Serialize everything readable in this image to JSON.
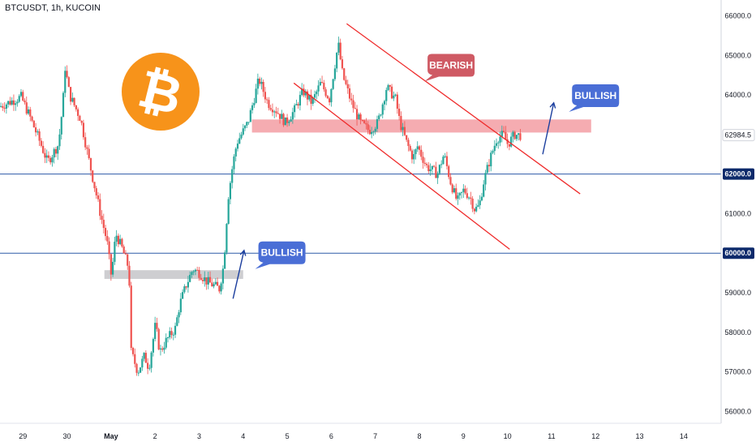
{
  "header": {
    "symbol_line": "BTCUSDT, 1h, KUCOIN"
  },
  "colors": {
    "up": "#26a69a",
    "down": "#ef5350",
    "channel": "#ef2b2b",
    "resistance_zone": "#f4a3a8",
    "support_zone": "#c9c9cc",
    "horizontal_line": "#2f5aa8",
    "bullish_callout": "#4a6ed6",
    "bearish_callout": "#cf5a64",
    "arrow": "#1c3f9e",
    "bitcoin_orange": "#f7931a",
    "current_price_label": "#ffffff"
  },
  "chart_data": {
    "type": "candlestick",
    "title": "",
    "xlabel": "",
    "ylabel": "",
    "ylim": [
      55700,
      66400
    ],
    "y_ticks": [
      "56000.0",
      "57000.0",
      "58000.0",
      "59000.0",
      "60000.0",
      "61000.0",
      "62000.0",
      "63000.0",
      "64000.0",
      "65000.0",
      "66000.0"
    ],
    "x_ticks": [
      {
        "label": "29",
        "day": 0
      },
      {
        "label": "30",
        "day": 1
      },
      {
        "label": "May",
        "day": 2
      },
      {
        "label": "2",
        "day": 3
      },
      {
        "label": "3",
        "day": 4
      },
      {
        "label": "4",
        "day": 5
      },
      {
        "label": "5",
        "day": 6
      },
      {
        "label": "6",
        "day": 7
      },
      {
        "label": "7",
        "day": 8
      },
      {
        "label": "8",
        "day": 9
      },
      {
        "label": "9",
        "day": 10
      },
      {
        "label": "10",
        "day": 11
      },
      {
        "label": "11",
        "day": 12
      },
      {
        "label": "12",
        "day": 13
      },
      {
        "label": "13",
        "day": 14
      },
      {
        "label": "14",
        "day": 15
      }
    ],
    "x_range_days": [
      -0.52,
      15.85
    ],
    "price_path": [
      [
        -0.5,
        63700
      ],
      [
        0.0,
        63950
      ],
      [
        0.2,
        63450
      ],
      [
        0.45,
        62750
      ],
      [
        0.6,
        62300
      ],
      [
        0.85,
        62750
      ],
      [
        0.95,
        63800
      ],
      [
        1.0,
        64700
      ],
      [
        1.1,
        64000
      ],
      [
        1.35,
        63400
      ],
      [
        1.55,
        62300
      ],
      [
        1.8,
        61000
      ],
      [
        1.95,
        60300
      ],
      [
        2.05,
        59400
      ],
      [
        2.15,
        60500
      ],
      [
        2.3,
        60100
      ],
      [
        2.45,
        59600
      ],
      [
        2.5,
        57500
      ],
      [
        2.65,
        57000
      ],
      [
        2.8,
        57400
      ],
      [
        2.9,
        57100
      ],
      [
        3.05,
        58200
      ],
      [
        3.15,
        57500
      ],
      [
        3.3,
        57800
      ],
      [
        3.5,
        58100
      ],
      [
        3.6,
        58700
      ],
      [
        3.75,
        59200
      ],
      [
        3.9,
        59600
      ],
      [
        4.05,
        59500
      ],
      [
        4.2,
        59300
      ],
      [
        4.35,
        59200
      ],
      [
        4.5,
        59100
      ],
      [
        4.6,
        59700
      ],
      [
        4.7,
        61400
      ],
      [
        4.8,
        62200
      ],
      [
        4.9,
        62800
      ],
      [
        5.0,
        63000
      ],
      [
        5.15,
        63300
      ],
      [
        5.4,
        64400
      ],
      [
        5.6,
        63800
      ],
      [
        5.8,
        63600
      ],
      [
        6.0,
        63300
      ],
      [
        6.2,
        63600
      ],
      [
        6.4,
        64100
      ],
      [
        6.6,
        63800
      ],
      [
        6.8,
        64300
      ],
      [
        7.0,
        63900
      ],
      [
        7.2,
        65300
      ],
      [
        7.3,
        64500
      ],
      [
        7.5,
        63800
      ],
      [
        7.7,
        63300
      ],
      [
        7.9,
        63100
      ],
      [
        8.1,
        63300
      ],
      [
        8.3,
        64200
      ],
      [
        8.5,
        63900
      ],
      [
        8.6,
        63300
      ],
      [
        8.75,
        62800
      ],
      [
        8.9,
        62400
      ],
      [
        9.0,
        62700
      ],
      [
        9.2,
        62200
      ],
      [
        9.45,
        62000
      ],
      [
        9.6,
        62500
      ],
      [
        9.75,
        61800
      ],
      [
        9.9,
        61300
      ],
      [
        10.05,
        61600
      ],
      [
        10.2,
        61400
      ],
      [
        10.3,
        61100
      ],
      [
        10.4,
        61200
      ],
      [
        10.5,
        61800
      ],
      [
        10.65,
        62400
      ],
      [
        10.8,
        62900
      ],
      [
        10.95,
        63000
      ],
      [
        11.05,
        62750
      ],
      [
        11.2,
        63000
      ],
      [
        11.3,
        62980
      ]
    ],
    "current_price": "62984.5",
    "horizontal_levels": [
      {
        "value": 62000,
        "label": "62000.0"
      },
      {
        "value": 60000,
        "label": "60000.0"
      }
    ],
    "zones": [
      {
        "name": "resistance",
        "x0": 5.2,
        "x1": 12.9,
        "y0": 63050,
        "y1": 63380
      },
      {
        "name": "support",
        "x0": 1.85,
        "x1": 5.0,
        "y0": 59350,
        "y1": 59570
      }
    ],
    "channel_lines": [
      {
        "x0": 7.35,
        "y0": 65800,
        "x1": 12.65,
        "y1": 61500
      },
      {
        "x0": 6.15,
        "y0": 64300,
        "x1": 11.05,
        "y0_end": 0,
        "y1": 60100
      }
    ],
    "annotations": [
      {
        "kind": "callout",
        "text": "BEARISH",
        "style": "bearish",
        "day": 9.72,
        "price": 64750,
        "tail": "left"
      },
      {
        "kind": "callout",
        "text": "BULLISH",
        "style": "bullish",
        "day": 13.0,
        "price": 63980,
        "tail": "left"
      },
      {
        "kind": "callout",
        "text": "BULLISH",
        "style": "bullish",
        "day": 5.88,
        "price": 60010,
        "tail": "left"
      },
      {
        "kind": "arrow",
        "day0": 11.8,
        "price0": 62500,
        "day1": 12.05,
        "price1": 63800
      },
      {
        "kind": "arrow",
        "day0": 4.77,
        "price0": 58850,
        "day1": 5.02,
        "price1": 60070
      }
    ],
    "logo": "bitcoin"
  }
}
